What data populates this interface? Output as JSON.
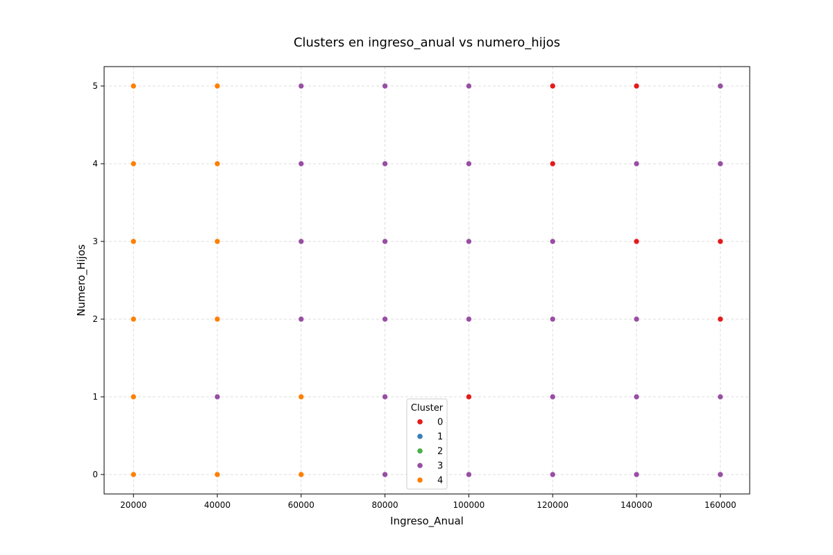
{
  "chart_data": {
    "type": "scatter",
    "title": "Clusters en ingreso_anual vs numero_hijos",
    "xlabel": "Ingreso_Anual",
    "ylabel": "Numero_Hijos",
    "xlim": [
      13000,
      167000
    ],
    "ylim": [
      -0.25,
      5.25
    ],
    "xticks": [
      20000,
      40000,
      60000,
      80000,
      100000,
      120000,
      140000,
      160000
    ],
    "yticks": [
      0,
      1,
      2,
      3,
      4,
      5
    ],
    "grid": true,
    "legend": {
      "title": "Cluster",
      "placement": "lower-center",
      "entries": [
        {
          "label": "0",
          "color": "#e41a1c"
        },
        {
          "label": "1",
          "color": "#377eb8"
        },
        {
          "label": "2",
          "color": "#4daf4a"
        },
        {
          "label": "3",
          "color": "#984ea3"
        },
        {
          "label": "4",
          "color": "#ff7f00"
        }
      ]
    },
    "series": [
      {
        "name": "0",
        "color": "#e41a1c",
        "points": [
          [
            120000,
            5
          ],
          [
            140000,
            5
          ],
          [
            120000,
            4
          ],
          [
            140000,
            3
          ],
          [
            160000,
            3
          ],
          [
            160000,
            2
          ],
          [
            100000,
            1
          ]
        ]
      },
      {
        "name": "1",
        "color": "#377eb8",
        "points": []
      },
      {
        "name": "2",
        "color": "#4daf4a",
        "points": []
      },
      {
        "name": "3",
        "color": "#984ea3",
        "points": [
          [
            60000,
            5
          ],
          [
            80000,
            5
          ],
          [
            100000,
            5
          ],
          [
            160000,
            5
          ],
          [
            60000,
            4
          ],
          [
            80000,
            4
          ],
          [
            100000,
            4
          ],
          [
            140000,
            4
          ],
          [
            160000,
            4
          ],
          [
            60000,
            3
          ],
          [
            80000,
            3
          ],
          [
            100000,
            3
          ],
          [
            120000,
            3
          ],
          [
            60000,
            2
          ],
          [
            80000,
            2
          ],
          [
            100000,
            2
          ],
          [
            120000,
            2
          ],
          [
            140000,
            2
          ],
          [
            40000,
            1
          ],
          [
            80000,
            1
          ],
          [
            120000,
            1
          ],
          [
            140000,
            1
          ],
          [
            160000,
            1
          ],
          [
            80000,
            0
          ],
          [
            100000,
            0
          ],
          [
            120000,
            0
          ],
          [
            140000,
            0
          ],
          [
            160000,
            0
          ]
        ]
      },
      {
        "name": "4",
        "color": "#ff7f00",
        "points": [
          [
            20000,
            5
          ],
          [
            40000,
            5
          ],
          [
            20000,
            4
          ],
          [
            40000,
            4
          ],
          [
            20000,
            3
          ],
          [
            40000,
            3
          ],
          [
            20000,
            2
          ],
          [
            40000,
            2
          ],
          [
            20000,
            1
          ],
          [
            60000,
            1
          ],
          [
            20000,
            0
          ],
          [
            40000,
            0
          ],
          [
            60000,
            0
          ]
        ]
      }
    ]
  }
}
